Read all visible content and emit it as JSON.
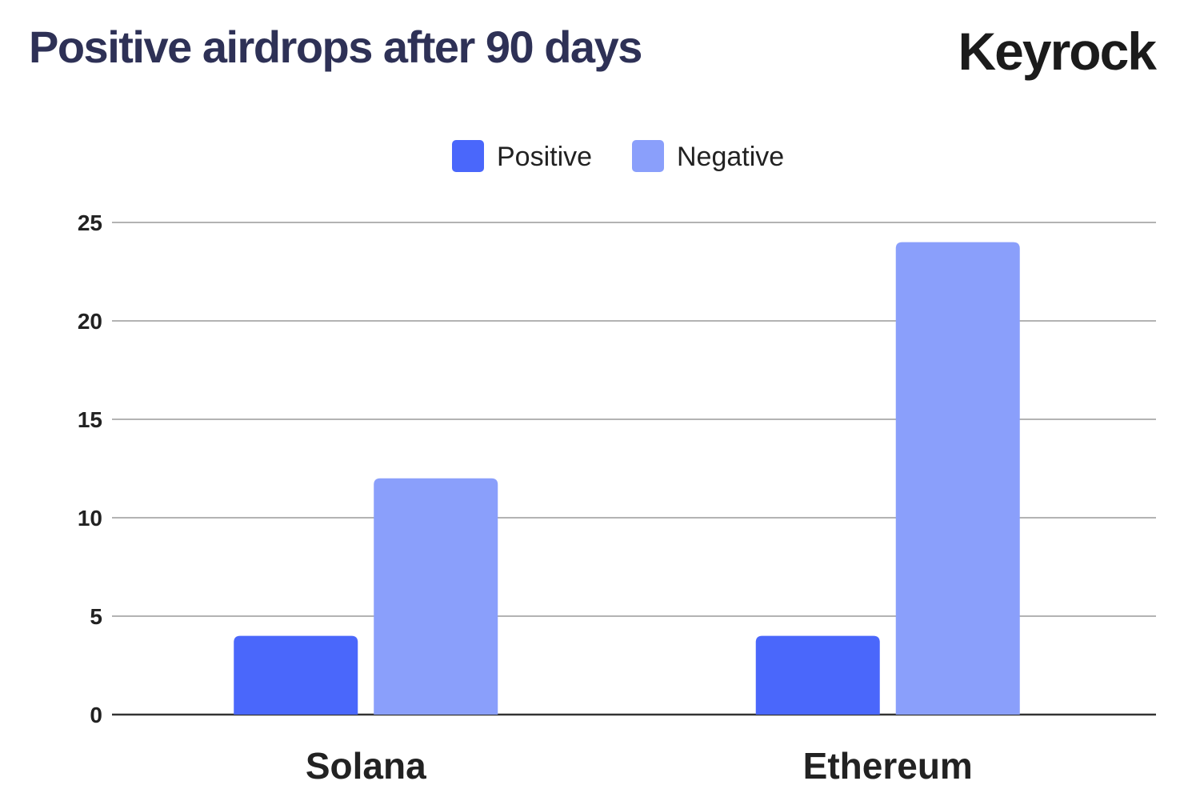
{
  "chart_data": {
    "type": "bar",
    "title": "Positive airdrops after 90 days",
    "categories": [
      "Solana",
      "Ethereum"
    ],
    "series": [
      {
        "name": "Positive",
        "values": [
          4,
          4
        ],
        "color": "#4a67fb"
      },
      {
        "name": "Negative",
        "values": [
          12,
          24
        ],
        "color": "#8a9ffb"
      }
    ],
    "xlabel": "",
    "ylabel": "",
    "ylim": [
      0,
      25
    ],
    "yticks": [
      0,
      5,
      10,
      15,
      20,
      25
    ],
    "grid": true,
    "legend_position": "top-center"
  },
  "brand": {
    "logo_text": "Keyrock"
  }
}
